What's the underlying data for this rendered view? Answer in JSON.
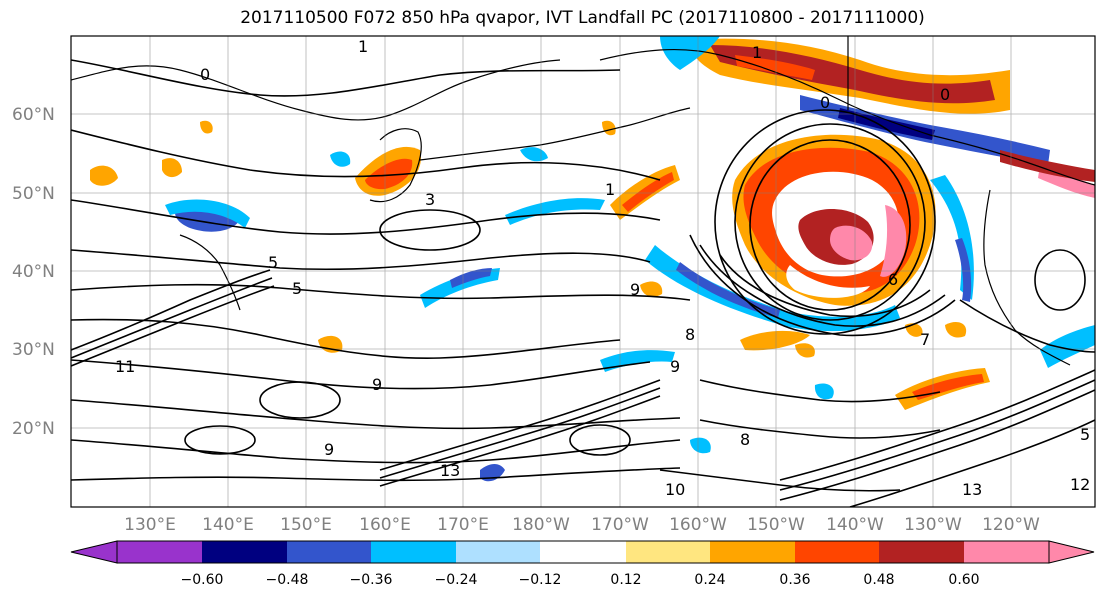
{
  "title": "2017110500 F072 850 hPa qvapor, IVT Landfall PC (2017110800 - 2017111000)",
  "map": {
    "lat_ticks": [
      "60°N",
      "50°N",
      "40°N",
      "30°N",
      "20°N"
    ],
    "lon_ticks": [
      "130°E",
      "140°E",
      "150°E",
      "160°E",
      "170°E",
      "180°W",
      "170°W",
      "160°W",
      "150°W",
      "140°W",
      "130°W",
      "120°W"
    ],
    "contour_labels": [
      "1",
      "1",
      "0",
      "0",
      "3",
      "5",
      "5",
      "9",
      "11",
      "9",
      "9",
      "9",
      "13",
      "10",
      "13",
      "12",
      "8",
      "8",
      "6",
      "5",
      "7",
      "1",
      "0"
    ]
  },
  "colorbar": {
    "colors": [
      "#9933cc",
      "#000080",
      "#3355cc",
      "#00bfff",
      "#aee0ff",
      "#ffffff",
      "#ffe680",
      "#ffa500",
      "#ff4500",
      "#b22222",
      "#ff88aa"
    ],
    "tick_labels": [
      "−0.60",
      "−0.48",
      "−0.36",
      "−0.24",
      "−0.12",
      "0.12",
      "0.24",
      "0.36",
      "0.48",
      "0.60"
    ]
  }
}
